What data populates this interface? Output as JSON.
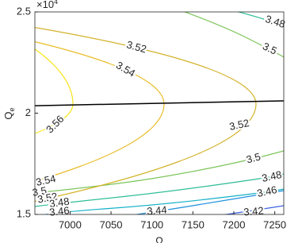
{
  "chart_data": {
    "type": "contour",
    "xlabel": "Ω",
    "ylabel": "Q",
    "ylabel_subscript": "e",
    "y_multiplier": "×10",
    "y_multiplier_exponent": "4",
    "xlim": [
      6957,
      7261
    ],
    "xticks": [
      7000,
      7050,
      7100,
      7150,
      7200,
      7250
    ],
    "ylim": [
      1.5,
      2.5
    ],
    "yticks": [
      1.5,
      2,
      2.5
    ],
    "levels": [
      3.42,
      3.44,
      3.46,
      3.48,
      3.5,
      3.52,
      3.54,
      3.56
    ],
    "level_colors": [
      "#3b63e6",
      "#1d8fdc",
      "#14b0c6",
      "#2fbd96",
      "#7cc55a",
      "#d4b32c",
      "#e9bd2b",
      "#f6e41c"
    ],
    "line": {
      "x": [
        6957,
        7261
      ],
      "y": [
        2.037,
        2.061
      ],
      "color": "#000000"
    }
  }
}
